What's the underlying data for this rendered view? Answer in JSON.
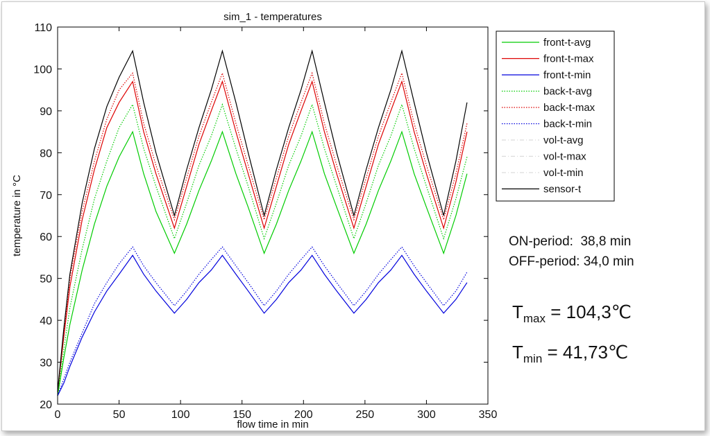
{
  "chart_data": {
    "type": "line",
    "title": "sim_1 - temperatures",
    "xlabel": "flow time in min",
    "ylabel": "temperature in °C",
    "xlim": [
      0,
      350
    ],
    "ylim": [
      20,
      110
    ],
    "xticks": [
      "0",
      "50",
      "100",
      "150",
      "200",
      "250",
      "300",
      "350"
    ],
    "yticks": [
      "20",
      "30",
      "40",
      "50",
      "60",
      "70",
      "80",
      "90",
      "100",
      "110"
    ],
    "grid": false,
    "legend_position": "outside-right",
    "x": [
      0,
      5,
      10,
      20,
      30,
      40,
      50,
      61,
      70,
      80,
      95,
      105,
      115,
      125,
      134,
      145,
      155,
      168,
      178,
      188,
      198,
      207,
      217,
      227,
      241,
      251,
      261,
      271,
      280,
      290,
      300,
      314,
      324,
      333
    ],
    "series": [
      {
        "name": "front-t-avg",
        "color": "#00cc00",
        "style": "solid",
        "values": [
          22,
          31,
          39,
          52,
          63,
          72,
          79,
          85,
          75,
          66,
          56,
          63,
          71,
          78,
          85,
          75,
          67,
          56,
          63,
          71,
          78,
          85,
          75,
          67,
          56,
          63,
          71,
          78,
          85,
          75,
          67,
          56,
          65,
          75
        ]
      },
      {
        "name": "front-t-max",
        "color": "#dd0000",
        "style": "solid",
        "values": [
          23,
          36,
          48,
          64,
          76,
          86,
          92,
          97,
          85,
          75,
          62,
          72,
          82,
          90,
          97,
          85,
          75,
          62,
          72,
          82,
          90,
          97,
          85,
          75,
          62,
          72,
          82,
          90,
          97,
          85,
          75,
          62,
          73,
          85
        ]
      },
      {
        "name": "front-t-min",
        "color": "#0000dd",
        "style": "solid",
        "values": [
          22,
          25,
          29,
          36,
          42,
          47,
          51,
          55.5,
          51,
          47,
          41.7,
          45,
          49,
          52,
          55.5,
          51,
          47,
          41.7,
          45,
          49,
          52,
          55.5,
          51,
          47,
          41.7,
          45,
          49,
          52,
          55.5,
          51,
          47,
          41.7,
          45,
          49
        ]
      },
      {
        "name": "back-t-avg",
        "color": "#00cc00",
        "style": "dotted",
        "values": [
          22,
          33,
          43,
          57,
          69,
          78,
          86,
          91.5,
          81,
          72,
          59.5,
          68,
          77,
          84,
          91.5,
          81,
          72,
          59.5,
          68,
          77,
          84,
          91.5,
          81,
          72,
          59.5,
          68,
          77,
          84,
          91.5,
          81,
          72,
          59.5,
          69,
          79
        ]
      },
      {
        "name": "back-t-max",
        "color": "#dd0000",
        "style": "dotted",
        "values": [
          23,
          37,
          50,
          66,
          78,
          88,
          95,
          99,
          87,
          77,
          64,
          74,
          84,
          92,
          99,
          87,
          77,
          64,
          74,
          84,
          92,
          99,
          87,
          77,
          64,
          74,
          84,
          92,
          99,
          87,
          77,
          64,
          75,
          87
        ]
      },
      {
        "name": "back-t-min",
        "color": "#0000dd",
        "style": "dotted",
        "values": [
          22,
          26,
          30,
          37,
          44,
          49,
          53.5,
          57.5,
          53,
          49,
          43.5,
          47,
          51,
          54.5,
          57.5,
          53,
          49,
          43.5,
          47,
          51,
          54.5,
          57.5,
          53,
          49,
          43.5,
          47,
          51,
          54.5,
          57.5,
          53,
          49,
          43.5,
          47,
          51.5
        ]
      },
      {
        "name": "sensor-t",
        "color": "#000000",
        "style": "solid",
        "values": [
          23,
          38,
          51,
          68,
          81,
          91,
          98,
          104.3,
          92,
          80,
          65,
          76,
          86,
          95,
          104.3,
          92,
          80,
          65,
          76,
          86,
          95,
          104.3,
          92,
          80,
          65,
          76,
          86,
          95,
          104.3,
          92,
          80,
          65,
          78,
          92
        ]
      }
    ],
    "legend_only": [
      {
        "name": "vol-t-avg",
        "color": "#ffffff",
        "style": "dashdot"
      },
      {
        "name": "vol-t-max",
        "color": "#ffffff",
        "style": "dashdot"
      },
      {
        "name": "vol-t-min",
        "color": "#ffffff",
        "style": "dashdot"
      }
    ]
  },
  "notes": {
    "on_period": "ON-period:  38,8 min",
    "off_period": "OFF-period: 34,0 min",
    "tmax_label": "T",
    "tmax_sub": "max",
    "tmax_value": " = 104,3℃",
    "tmin_label": "T",
    "tmin_sub": "min",
    "tmin_value": " = 41,73℃"
  }
}
